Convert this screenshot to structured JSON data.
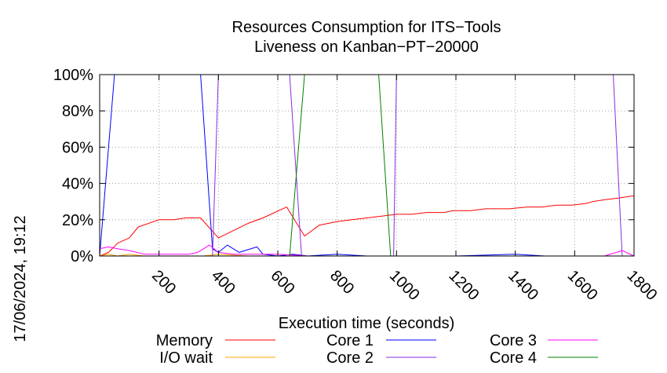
{
  "chart_data": {
    "type": "line",
    "title": "Resources Consumption for ITS−Tools",
    "subtitle": "Liveness on Kanban−PT−20000",
    "xlabel": "Execution time (seconds)",
    "ylabel": "",
    "xlim": [
      0,
      1800
    ],
    "ylim": [
      0,
      100
    ],
    "xticks": [
      200,
      400,
      600,
      800,
      1000,
      1200,
      1400,
      1600,
      1800
    ],
    "xtick_labels": [
      "200",
      "400",
      "600",
      "800",
      "1000",
      "1200",
      "1400",
      "1600",
      "1800"
    ],
    "yticks": [
      0,
      20,
      40,
      60,
      80,
      100
    ],
    "ytick_labels": [
      "0%",
      "20%",
      "40%",
      "60%",
      "80%",
      "100%"
    ],
    "grid": true,
    "legend_position": "bottom",
    "timestamp": "17/06/2024, 19:12",
    "series": [
      {
        "name": "Memory",
        "color": "#ff0000",
        "x": [
          0,
          30,
          60,
          100,
          130,
          200,
          250,
          290,
          340,
          340,
          400,
          450,
          500,
          550,
          630,
          690,
          740,
          800,
          850,
          900,
          950,
          1000,
          1050,
          1100,
          1160,
          1190,
          1250,
          1300,
          1350,
          1380,
          1440,
          1490,
          1540,
          1590,
          1640,
          1660,
          1700,
          1750,
          1790,
          1800
        ],
        "y": [
          0,
          2,
          7,
          10,
          16,
          20,
          20,
          21,
          21,
          21,
          10,
          14,
          18,
          21,
          27,
          11,
          17,
          19,
          20,
          21,
          22,
          23,
          23,
          24,
          24,
          25,
          25,
          26,
          26,
          26,
          27,
          27,
          28,
          28,
          29,
          30,
          31,
          32,
          33,
          33
        ]
      },
      {
        "name": "I/O wait",
        "color": "#ffa500",
        "x": [
          0,
          30,
          60,
          100,
          150,
          200,
          250,
          300,
          350,
          400,
          500,
          600,
          700,
          800,
          900,
          1000,
          1200,
          1400,
          1600,
          1800
        ],
        "y": [
          0,
          1,
          0,
          1,
          0,
          0,
          0,
          0,
          0,
          1,
          0,
          0,
          0,
          0,
          0,
          0,
          0,
          0,
          0,
          0
        ]
      },
      {
        "name": "Core 1",
        "color": "#0000ff",
        "x": [
          0,
          50,
          60,
          100,
          200,
          300,
          340,
          380,
          400,
          430,
          470,
          530,
          550,
          600,
          650,
          700,
          800,
          900,
          1000,
          1200,
          1400,
          1500,
          1600,
          1800
        ],
        "y": [
          0,
          100,
          100,
          100,
          100,
          100,
          100,
          4,
          2,
          6,
          2,
          5,
          1,
          0,
          1,
          0,
          1,
          0,
          0,
          0,
          1,
          0,
          0,
          0
        ]
      },
      {
        "name": "Core 2",
        "color": "#8a2be2",
        "x": [
          0,
          100,
          200,
          300,
          350,
          380,
          400,
          500,
          600,
          640,
          680,
          700,
          800,
          900,
          950,
          990,
          1000,
          1200,
          1400,
          1600,
          1730,
          1760,
          1800
        ],
        "y": [
          0,
          0,
          0,
          0,
          0,
          0,
          100,
          100,
          100,
          100,
          0,
          0,
          0,
          0,
          0,
          0,
          100,
          100,
          100,
          100,
          100,
          0,
          0
        ]
      },
      {
        "name": "Core 3",
        "color": "#ff00ff",
        "x": [
          0,
          30,
          60,
          100,
          150,
          200,
          300,
          330,
          350,
          370,
          400,
          450,
          600,
          700,
          800,
          900,
          1000,
          1200,
          1400,
          1600,
          1700,
          1760,
          1800
        ],
        "y": [
          4,
          5,
          4,
          3,
          1,
          1,
          1,
          2,
          4,
          6,
          2,
          1,
          1,
          0,
          0,
          0,
          0,
          0,
          0,
          0,
          0,
          3,
          0
        ]
      },
      {
        "name": "Core 4",
        "color": "#008000",
        "x": [
          0,
          100,
          200,
          300,
          400,
          500,
          600,
          640,
          690,
          700,
          800,
          900,
          940,
          980,
          1000,
          1200,
          1400,
          1600,
          1800
        ],
        "y": [
          0,
          0,
          0,
          0,
          0,
          0,
          0,
          0,
          100,
          100,
          100,
          100,
          100,
          0,
          0,
          0,
          0,
          0,
          0
        ]
      }
    ]
  }
}
